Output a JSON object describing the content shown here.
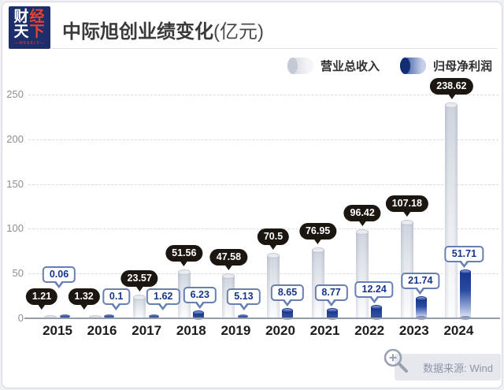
{
  "header": {
    "logo": {
      "char1": "财",
      "char2": "经",
      "char3": "天",
      "char4": "下",
      "weekly": "—WEEKLY—"
    },
    "title": "中际旭创业绩变化",
    "title_unit": "(亿元)"
  },
  "chart_data": {
    "type": "bar",
    "title": "中际旭创业绩变化(亿元)",
    "categories": [
      "2015",
      "2016",
      "2017",
      "2018",
      "2019",
      "2020",
      "2021",
      "2022",
      "2023",
      "2024"
    ],
    "series": [
      {
        "name": "营业总收入",
        "values": [
          1.21,
          1.32,
          23.57,
          51.56,
          47.58,
          70.5,
          76.95,
          96.42,
          107.18,
          238.62
        ],
        "labels": [
          "1.21",
          "1.32",
          "23.57",
          "51.56",
          "47.58",
          "70.5",
          "76.95",
          "96.42",
          "107.18",
          "238.62"
        ]
      },
      {
        "name": "归母净利润",
        "values": [
          0.06,
          0.1,
          1.62,
          6.23,
          5.13,
          8.65,
          8.77,
          12.24,
          21.74,
          51.71
        ],
        "labels": [
          "0.06",
          "0.1",
          "1.62",
          "6.23",
          "5.13",
          "8.65",
          "8.77",
          "12.24",
          "21.74",
          "51.71"
        ]
      }
    ],
    "xlabel": "",
    "ylabel": "",
    "ylim": [
      0,
      250
    ],
    "yticks": [
      0,
      50,
      100,
      150,
      200,
      250
    ],
    "grid": "dashed-horizontal",
    "legend_position": "top-right",
    "source": "数据来源: Wind"
  },
  "footer": {
    "source_label": "数据来源: Wind"
  },
  "colors": {
    "logo_bg": "#1e2e6b",
    "accent_red": "#e8432e",
    "revenue_bar": "#d8dce4",
    "profit_bar": "#1e3f96",
    "black_bubble": "#1c1611",
    "white_bubble_border": "#687fb2",
    "white_bubble_text": "#16348c",
    "axis": "#989fab",
    "gridline": "#d7dade"
  }
}
